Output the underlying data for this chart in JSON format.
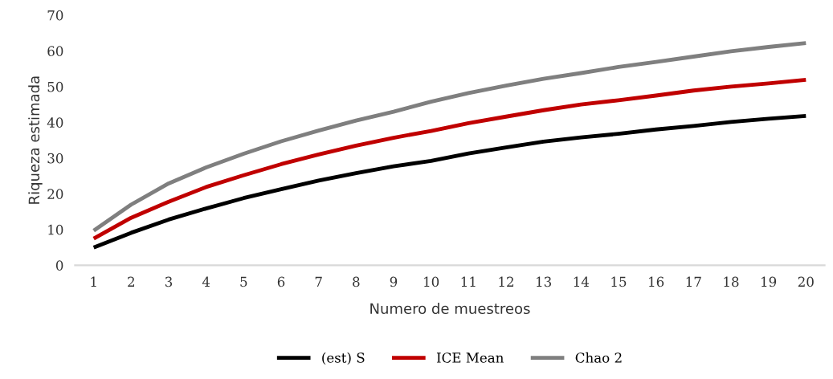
{
  "chart_data": {
    "type": "line",
    "xlabel": "Numero de muestreos",
    "ylabel": "Riqueza estimada",
    "categories": [
      "1",
      "2",
      "3",
      "4",
      "5",
      "6",
      "7",
      "8",
      "9",
      "10",
      "11",
      "12",
      "13",
      "14",
      "15",
      "16",
      "17",
      "18",
      "19",
      "20"
    ],
    "series": [
      {
        "name": "(est) S",
        "color": "#000000",
        "values": [
          5.0,
          9.1,
          12.8,
          15.9,
          18.8,
          21.3,
          23.7,
          25.8,
          27.7,
          29.2,
          31.3,
          33.0,
          34.6,
          35.8,
          36.8,
          38.0,
          39.0,
          40.1,
          41.0,
          41.8
        ]
      },
      {
        "name": "ICE Mean",
        "color": "#c00000",
        "values": [
          7.5,
          13.3,
          17.8,
          21.9,
          25.2,
          28.3,
          31.0,
          33.5,
          35.7,
          37.6,
          39.8,
          41.6,
          43.4,
          45.0,
          46.2,
          47.5,
          48.9,
          50.0,
          50.9,
          51.9
        ]
      },
      {
        "name": "Chao 2",
        "color": "#7f7f7f",
        "values": [
          9.7,
          17.0,
          22.9,
          27.4,
          31.2,
          34.7,
          37.7,
          40.5,
          43.0,
          45.8,
          48.2,
          50.3,
          52.2,
          53.8,
          55.5,
          56.9,
          58.4,
          59.9,
          61.1,
          62.2
        ]
      }
    ],
    "ylim": [
      0,
      70
    ],
    "yticks": [
      0,
      10,
      20,
      30,
      40,
      50,
      60,
      70
    ],
    "grid": false,
    "legend": "bottom",
    "marker": "none",
    "line_style": "solid"
  }
}
